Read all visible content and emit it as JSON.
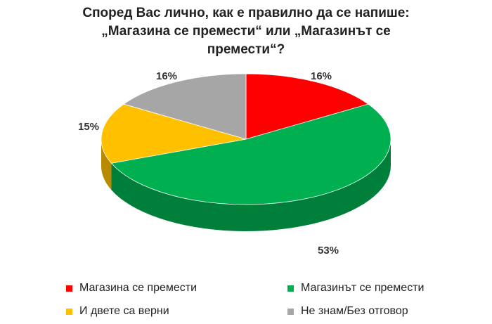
{
  "title_lines": [
    "Според Вас лично, как е правилно да се напише:",
    "„Магазина се премести“ или „Магазинът се",
    "премести“?"
  ],
  "chart_data": {
    "type": "pie",
    "title": "Според Вас лично, как е правилно да се напише: „Магазина се премести“ или „Магазинът се премести“?",
    "series": [
      {
        "name": "Магазина се премести",
        "value": 16,
        "label": "16%",
        "color": "#FF0000"
      },
      {
        "name": "Магазинът се премести",
        "value": 53,
        "label": "53%",
        "color": "#00B050"
      },
      {
        "name": "И двете са верни",
        "value": 15,
        "label": "15%",
        "color": "#FFC000"
      },
      {
        "name": "Не знам/Без отговор",
        "value": 16,
        "label": "16%",
        "color": "#A6A6A6"
      }
    ],
    "legend_position": "bottom",
    "style": "3d"
  }
}
